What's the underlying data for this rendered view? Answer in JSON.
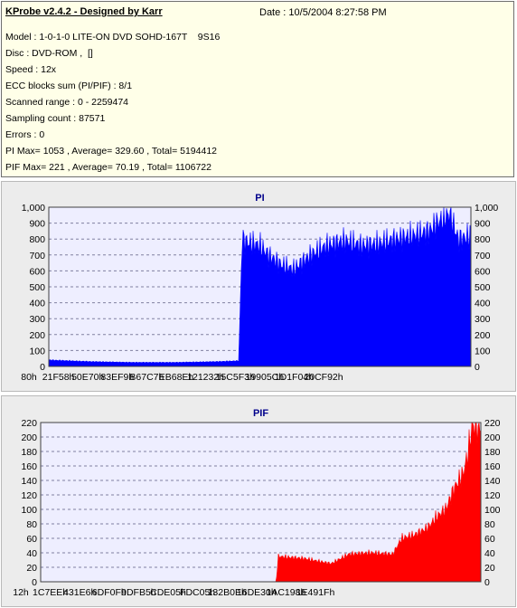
{
  "header": {
    "title": "KProbe v2.4.2 - Designed by Karr",
    "date": "Date : 10/5/2004 8:27:58 PM",
    "lines": [
      "Model : 1-0-1-0 LITE-ON DVD SOHD-167T    9S16",
      "Disc : DVD-ROM ,  []",
      "Speed : 12x",
      "ECC blocks sum (PI/PIF) : 8/1",
      "Scanned range : 0 - 2259474",
      "Sampling count : 87571",
      "Errors : 0",
      "PI Max= 1053 , Average= 329.60 , Total= 5194412",
      "PIF Max= 221 , Average= 70.19 , Total= 1106722"
    ]
  },
  "colors": {
    "pi": "#0000ff",
    "pif": "#ff0000",
    "plot_bg": "#eeeeff",
    "grid": "#8080a0"
  },
  "chart_data": [
    {
      "type": "area",
      "title": "PI",
      "xlabel": "",
      "ylabel": "",
      "ylim": [
        0,
        1000
      ],
      "yticks": [
        "0",
        "100",
        "200",
        "300",
        "400",
        "500",
        "600",
        "700",
        "800",
        "900",
        "1,000"
      ],
      "xticks": [
        "80h",
        "21F58h",
        "50E70h",
        "83EF9h",
        "B67C7h",
        "EB68Eh",
        "121232h",
        "15C5F3h",
        "19905Ch",
        "1D1F04h",
        "20CF92h"
      ],
      "grid": true,
      "x": [
        0,
        0.1,
        0.2,
        0.3,
        0.4,
        0.45,
        0.458,
        0.47,
        0.5,
        0.52,
        0.55,
        0.58,
        0.62,
        0.66,
        0.7,
        0.74,
        0.78,
        0.82,
        0.86,
        0.9,
        0.92,
        0.95,
        0.97,
        1.0
      ],
      "series": [
        {
          "values": [
            40,
            30,
            25,
            25,
            30,
            35,
            800,
            780,
            760,
            700,
            640,
            610,
            700,
            760,
            790,
            760,
            770,
            800,
            820,
            850,
            900,
            960,
            800,
            820
          ]
        }
      ]
    },
    {
      "type": "area",
      "title": "PIF",
      "xlabel": "",
      "ylabel": "",
      "ylim": [
        0,
        220
      ],
      "yticks": [
        "0",
        "20",
        "40",
        "60",
        "80",
        "100",
        "120",
        "140",
        "160",
        "180",
        "200",
        "220"
      ],
      "xticks": [
        "12h",
        "1C7EEh",
        "431E6h",
        "6DF0Fh",
        "9DFB5h",
        "CDE05h",
        "FDC05h",
        "132B0Eh",
        "16DE30h",
        "1AC198h",
        "1E491Fh"
      ],
      "grid": true,
      "x": [
        0,
        0.1,
        0.2,
        0.3,
        0.4,
        0.5,
        0.535,
        0.54,
        0.6,
        0.66,
        0.7,
        0.75,
        0.8,
        0.82,
        0.85,
        0.88,
        0.9,
        0.92,
        0.94,
        0.96,
        0.97,
        0.98,
        1.0
      ],
      "series": [
        {
          "values": [
            0,
            0,
            0,
            0,
            0,
            0,
            0,
            35,
            32,
            25,
            38,
            40,
            38,
            60,
            65,
            75,
            90,
            100,
            130,
            150,
            175,
            215,
            215
          ]
        }
      ]
    }
  ]
}
